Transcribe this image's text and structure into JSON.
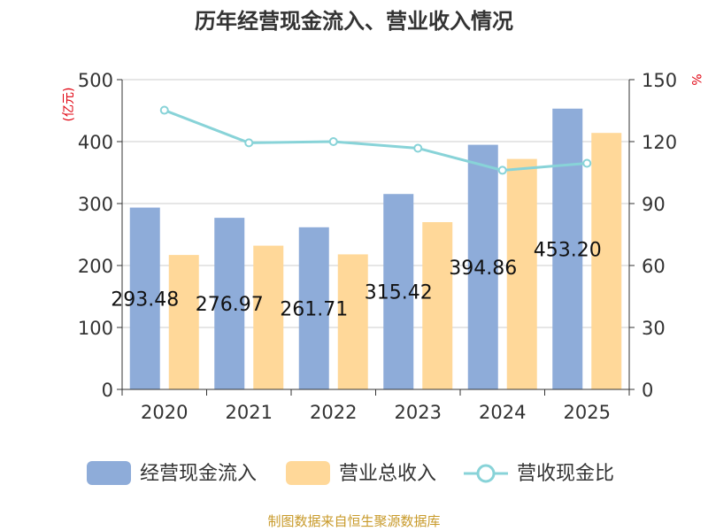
{
  "chart_data": {
    "type": "bar+line",
    "title": "历年经营现金流入、营业收入情况",
    "categories": [
      "2020",
      "2021",
      "2022",
      "2023",
      "2024",
      "2025"
    ],
    "left_axis": {
      "unit_label": "(亿元)",
      "range": [
        0,
        500
      ],
      "ticks": [
        "0",
        "100",
        "200",
        "300",
        "400",
        "500"
      ]
    },
    "right_axis": {
      "unit_label": "%",
      "range": [
        0,
        150
      ],
      "ticks": [
        "0",
        "30",
        "60",
        "90",
        "120",
        "150"
      ]
    },
    "series": [
      {
        "name": "经营现金流入",
        "type": "bar",
        "axis": "left",
        "color": "#8eacd9",
        "values": [
          293.48,
          276.97,
          261.71,
          315.42,
          394.86,
          453.2
        ],
        "labels": [
          "293.48",
          "276.97",
          "261.71",
          "315.42",
          "394.86",
          "453.20"
        ]
      },
      {
        "name": "营业总收入",
        "type": "bar",
        "axis": "left",
        "color": "#ffd899",
        "values": [
          217,
          232,
          218,
          270,
          372,
          414
        ]
      },
      {
        "name": "营收现金比",
        "type": "line",
        "axis": "right",
        "color": "#88d3d8",
        "values": [
          135.2,
          119.4,
          120.0,
          116.8,
          106.1,
          109.5
        ]
      }
    ],
    "legend_position": "bottom",
    "source": "制图数据来自恒生聚源数据库"
  }
}
